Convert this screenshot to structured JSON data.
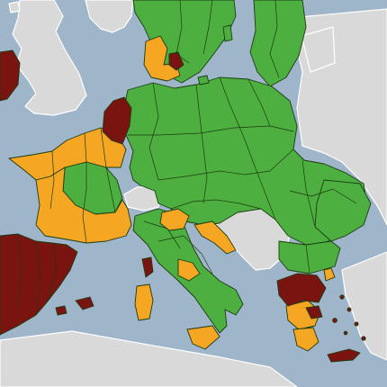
{
  "map": {
    "risk_colors": {
      "green": "#4caf3f",
      "orange": "#f5a623",
      "dark_red": "#7a1410",
      "grey_non_eu": "#d9d9d9",
      "sea": "#9fb5c9",
      "region_border": "#1d3b12"
    },
    "regions": [
      {
        "name": "scandinavia-north",
        "level": "green"
      },
      {
        "name": "finland-baltics",
        "level": "green"
      },
      {
        "name": "denmark",
        "level": "orange"
      },
      {
        "name": "west-sweden-island",
        "level": "dark-red"
      },
      {
        "name": "ireland",
        "level": "dark-red"
      },
      {
        "name": "netherlands-belgium",
        "level": "dark-red"
      },
      {
        "name": "france-north-west",
        "level": "orange"
      },
      {
        "name": "france-centre",
        "level": "green"
      },
      {
        "name": "france-south",
        "level": "orange"
      },
      {
        "name": "spain-portugal",
        "level": "dark-red"
      },
      {
        "name": "balearic-islands",
        "level": "dark-red"
      },
      {
        "name": "germany-poland",
        "level": "green"
      },
      {
        "name": "czechia-austria",
        "level": "green"
      },
      {
        "name": "hungary-romania",
        "level": "green"
      },
      {
        "name": "croatia",
        "level": "orange"
      },
      {
        "name": "italy",
        "level": "green"
      },
      {
        "name": "italy-north-orange",
        "level": "orange"
      },
      {
        "name": "italy-south-orange",
        "level": "orange"
      },
      {
        "name": "corsica",
        "level": "dark-red"
      },
      {
        "name": "sardinia",
        "level": "orange"
      },
      {
        "name": "sicily",
        "level": "orange"
      },
      {
        "name": "bulgaria",
        "level": "green"
      },
      {
        "name": "greece-north",
        "level": "dark-red"
      },
      {
        "name": "greece-central",
        "level": "orange"
      },
      {
        "name": "peloponnese",
        "level": "orange"
      },
      {
        "name": "crete",
        "level": "dark-red"
      }
    ]
  }
}
